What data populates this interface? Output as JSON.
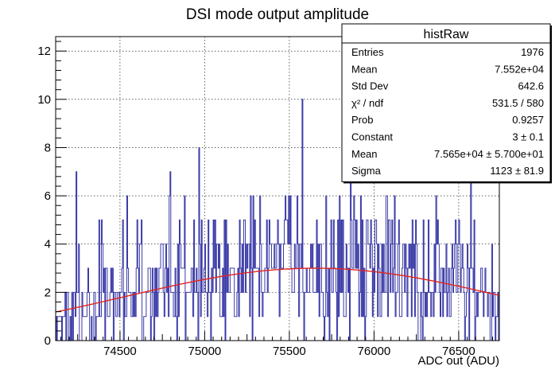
{
  "chart_data": {
    "type": "bar",
    "title": "DSI mode output amplitude",
    "xlabel": "ADC out (ADU)",
    "ylabel": "",
    "xlim": [
      74120,
      76740
    ],
    "ylim": [
      0,
      12.6
    ],
    "xticks": [
      74500,
      75000,
      75500,
      76000,
      76500
    ],
    "yticks": [
      0,
      2,
      4,
      6,
      8,
      10,
      12
    ],
    "grid": true,
    "histogram": {
      "name": "histRaw",
      "color": "#3b3ba8",
      "bin_width": 5,
      "seed": 1976,
      "entries": 1976
    },
    "fit": {
      "function": "gaus",
      "color": "#e3231f",
      "constant": 3,
      "mean": 75650,
      "sigma": 1123
    },
    "stats_box": {
      "title": "histRaw",
      "placement": "top-right",
      "rows": [
        {
          "label": "Entries",
          "value": "1976"
        },
        {
          "label": "Mean",
          "value": "7.552e+04"
        },
        {
          "label": "Std Dev",
          "value": "642.6"
        },
        {
          "label": "χ² / ndf",
          "value": "531.5 / 580"
        },
        {
          "label": "Prob",
          "value": "0.9257"
        },
        {
          "label": "Constant",
          "value": "3 ± 0.1"
        },
        {
          "label": "Mean",
          "value": "7.565e+04 ± 5.700e+01"
        },
        {
          "label": "Sigma",
          "value": "1123 ± 81.9"
        }
      ]
    }
  }
}
